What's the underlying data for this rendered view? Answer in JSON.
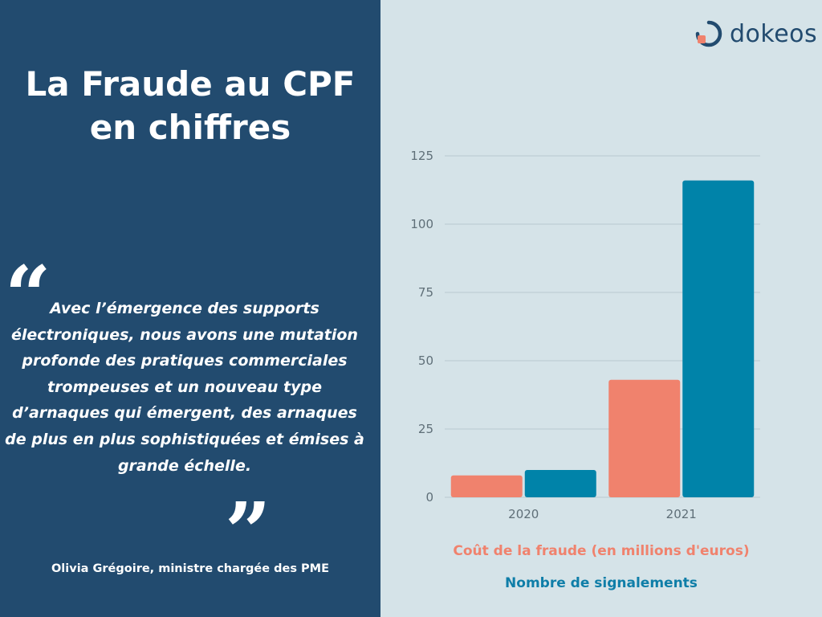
{
  "title_line1": "La Fraude au CPF",
  "title_line2": "en chiffres",
  "quote": {
    "open_mark": "“",
    "close_mark": "”",
    "text": "Avec l’émergence des supports électroniques, nous avons une mutation profonde des pratiques commerciales trompeuses et un nouveau type d’arnaques qui émergent, des arnaques de plus en plus sophistiquées et émises à grande échelle.",
    "author": "Olivia Grégoire, ministre chargée des PME"
  },
  "logo": {
    "text": "dokeos",
    "icon": "dokeos-logo-icon"
  },
  "colors": {
    "left_bg": "#224b6f",
    "right_bg": "#d5e3e8",
    "series1": "#f0826d",
    "series2": "#0083a9",
    "grid": "#b9c8cf",
    "tick": "#5f6f78"
  },
  "chart_data": {
    "type": "bar",
    "categories": [
      "2020",
      "2021"
    ],
    "series": [
      {
        "name": "Coût de la fraude (en millions d'euros)",
        "values": [
          8,
          43
        ]
      },
      {
        "name": "Nombre de signalements",
        "values": [
          10,
          116
        ]
      }
    ],
    "yticks": [
      "0",
      "25",
      "50",
      "75",
      "100",
      "125"
    ],
    "ylim": [
      0,
      125
    ],
    "grid": true,
    "legend_placement": "bottom"
  }
}
